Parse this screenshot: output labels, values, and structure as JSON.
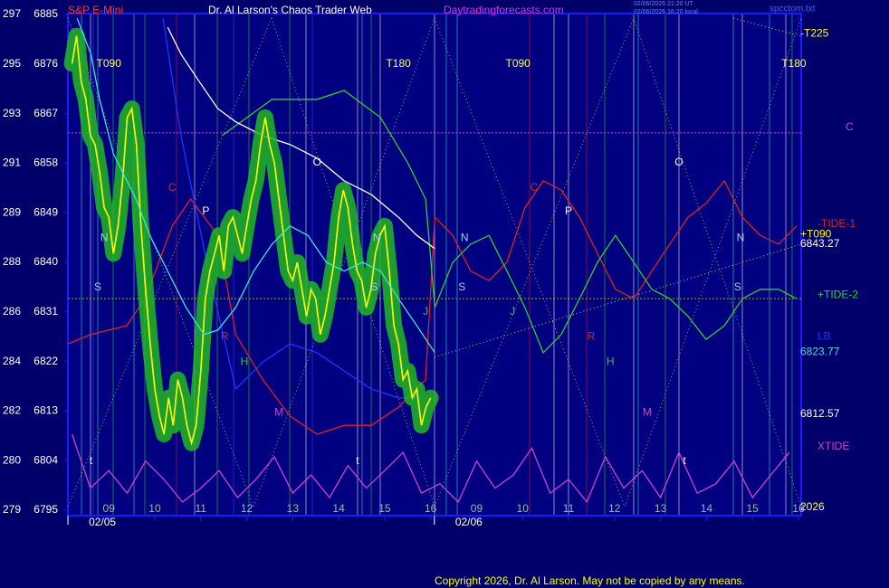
{
  "chart_data": {
    "type": "line",
    "header": {
      "symbol": "S&P E-Mini",
      "title": "Dr. Al Larson's Chaos Trader Web",
      "site": "Daytradingforecasts.com",
      "stamp_1": "02/06/2026 21:20 UT",
      "stamp_2": "02/06/2026 16:20 local",
      "file": "spcctom.txt"
    },
    "copyright": "Copyright 2026, Dr. Al Larson. May not be copied by any means.",
    "ylim": [
      6795,
      6885
    ],
    "yticks": [
      6885,
      6876,
      6867,
      6858,
      6849,
      6840,
      6831,
      6822,
      6813,
      6804,
      6795
    ],
    "left_labels": [
      "297",
      "295",
      "293",
      "291",
      "289",
      "288",
      "286",
      "284",
      "282",
      "280",
      "279"
    ],
    "xlim": [
      0.11,
      16.06
    ],
    "xticks": [
      {
        "value": 1,
        "label": "09"
      },
      {
        "value": 2,
        "label": "10"
      },
      {
        "value": 3,
        "label": "11"
      },
      {
        "value": 4,
        "label": "12"
      },
      {
        "value": 5,
        "label": "13"
      },
      {
        "value": 6,
        "label": "14"
      },
      {
        "value": 7,
        "label": "15"
      },
      {
        "value": 8,
        "label": "16"
      },
      {
        "value": 9,
        "label": "09"
      },
      {
        "value": 10,
        "label": "10"
      },
      {
        "value": 11,
        "label": "11"
      },
      {
        "value": 12,
        "label": "12"
      },
      {
        "value": 13,
        "label": "13"
      },
      {
        "value": 14,
        "label": "14"
      },
      {
        "value": 15,
        "label": "15"
      },
      {
        "value": 16,
        "label": "16"
      }
    ],
    "date_labels": [
      {
        "value": 0.86,
        "label": "02/05"
      },
      {
        "value": 8.83,
        "label": "02/06"
      }
    ],
    "levels": [
      {
        "value": 6863.5,
        "color": "#cc44cc"
      },
      {
        "value": 6833.4,
        "color": "#aaaa00"
      }
    ],
    "series": [
      {
        "name": "LB",
        "color": "#2233ff",
        "x": [
          2.18,
          2.57,
          3.17,
          3.76,
          4.35,
          4.94,
          5.53,
          6.12,
          6.71,
          7.3,
          7.89
        ],
        "values": [
          6884.3,
          6863.0,
          6838.4,
          6817.0,
          6821.9,
          6825.2,
          6823.6,
          6820.3,
          6817.0,
          6815.4,
          6815.4
        ]
      },
      {
        "name": "XTIDE",
        "color": "#cc44cc",
        "x": [
          0.2,
          0.6,
          1.0,
          1.4,
          1.8,
          2.2,
          2.6,
          3.0,
          3.4,
          3.8,
          4.2,
          4.6,
          5.0,
          5.4,
          5.8,
          6.2,
          6.6,
          7.0,
          7.4,
          7.8,
          8.2,
          8.6,
          9.0,
          9.4,
          9.8,
          10.2,
          10.6,
          11.0,
          11.4,
          11.8,
          12.2,
          12.6,
          13.0,
          13.4,
          13.8,
          14.2,
          14.6,
          15.0,
          15.4,
          15.8
        ],
        "values": [
          6808.8,
          6799.0,
          6802.2,
          6798.1,
          6803.9,
          6800.6,
          6796.5,
          6799.0,
          6802.2,
          6797.3,
          6800.6,
          6804.7,
          6798.1,
          6801.4,
          6797.3,
          6803.1,
          6799.0,
          6802.2,
          6805.5,
          6798.1,
          6799.8,
          6796.5,
          6803.9,
          6799.0,
          6801.4,
          6806.3,
          6798.1,
          6800.6,
          6796.5,
          6804.7,
          6799.0,
          6802.2,
          6797.3,
          6805.5,
          6798.1,
          6799.8,
          6803.9,
          6797.3,
          6801.4,
          6805.5
        ]
      },
      {
        "name": "-TIDE-1",
        "color": "#dd2222",
        "x": [
          0.11,
          0.61,
          1.39,
          1.79,
          2.38,
          2.78,
          3.37,
          3.76,
          4.35,
          4.94,
          5.53,
          6.12,
          6.71,
          7.3,
          7.89,
          8.09,
          8.48,
          8.87,
          9.27,
          9.66,
          10.05,
          10.45,
          10.84,
          11.24,
          11.63,
          12.02,
          12.42,
          12.81,
          13.2,
          13.6,
          13.99,
          14.39,
          14.78,
          15.17,
          15.57,
          15.96
        ],
        "values": [
          6825.2,
          6826.9,
          6828.5,
          6833.4,
          6846.6,
          6851.5,
          6844.9,
          6826.9,
          6818.7,
          6812.1,
          6808.8,
          6810.4,
          6810.4,
          6813.7,
          6818.7,
          6848.2,
          6844.9,
          6838.4,
          6836.7,
          6840.0,
          6849.9,
          6854.8,
          6853.1,
          6848.2,
          6841.6,
          6835.1,
          6833.4,
          6838.4,
          6843.3,
          6848.2,
          6850.7,
          6854.8,
          6848.2,
          6844.9,
          6843.3,
          6846.6
        ]
      },
      {
        "name": "+TIDE-2",
        "color": "#33cc33",
        "x": [
          3.46,
          4.55,
          5.53,
          6.12,
          6.91,
          7.5,
          7.89,
          8.09,
          8.48,
          8.87,
          9.27,
          9.66,
          10.05,
          10.45,
          10.84,
          11.24,
          11.63,
          12.02,
          12.42,
          12.81,
          13.2,
          13.6,
          13.99,
          14.39,
          14.78,
          15.17,
          15.57,
          15.96
        ],
        "values": [
          6863.0,
          6869.6,
          6869.6,
          6871.2,
          6866.3,
          6858.1,
          6851.5,
          6831.8,
          6840.0,
          6843.3,
          6844.9,
          6838.4,
          6831.8,
          6823.6,
          6826.9,
          6833.4,
          6840.0,
          6844.9,
          6840.0,
          6835.1,
          6833.4,
          6830.2,
          6826.0,
          6828.5,
          6833.4,
          6835.1,
          6835.1,
          6833.4
        ]
      },
      {
        "color": "#ffffff",
        "x": [
          2.28,
          2.57,
          2.97,
          3.37,
          3.76,
          4.35,
          4.94,
          5.53,
          6.12,
          6.71,
          7.3,
          7.7,
          8.09
        ],
        "values": [
          6882.7,
          6877.8,
          6872.8,
          6867.9,
          6865.5,
          6863.0,
          6861.4,
          6858.9,
          6854.8,
          6852.3,
          6848.2,
          6844.9,
          6842.5
        ]
      },
      {
        "color": "#ffff00",
        "highlight_color": "#22b822",
        "x": [
          0.2,
          0.3,
          0.4,
          0.5,
          0.6,
          0.7,
          0.8,
          0.9,
          1.0,
          1.1,
          1.2,
          1.3,
          1.4,
          1.5,
          1.6,
          1.7,
          1.8,
          1.9,
          2.0,
          2.1,
          2.2,
          2.3,
          2.4,
          2.5,
          2.6,
          2.7,
          2.8,
          2.9,
          3.0,
          3.1,
          3.2,
          3.3,
          3.4,
          3.5,
          3.6,
          3.7,
          3.8,
          3.9,
          4.0,
          4.1,
          4.2,
          4.3,
          4.4,
          4.5,
          4.6,
          4.7,
          4.8,
          4.9,
          5.0,
          5.1,
          5.2,
          5.3,
          5.4,
          5.5,
          5.6,
          5.7,
          5.8,
          5.9,
          6.0,
          6.1,
          6.2,
          6.3,
          6.4,
          6.5,
          6.6,
          6.7,
          6.8,
          6.9,
          7.0,
          7.1,
          7.2,
          7.3,
          7.4,
          7.5,
          7.6,
          7.7,
          7.8,
          7.9,
          8.0
        ],
        "values": [
          6876.1,
          6881.1,
          6872.8,
          6869.6,
          6863.0,
          6861.4,
          6856.4,
          6849.9,
          6848.2,
          6841.6,
          6846.6,
          6854.8,
          6866.3,
          6867.9,
          6861.4,
          6846.6,
          6835.1,
          6825.2,
          6817.0,
          6812.1,
          6808.8,
          6815.4,
          6810.4,
          6818.7,
          6815.4,
          6810.4,
          6807.2,
          6810.4,
          6820.3,
          6833.4,
          6838.4,
          6841.6,
          6844.9,
          6838.4,
          6846.6,
          6848.2,
          6844.9,
          6841.6,
          6846.6,
          6851.5,
          6854.8,
          6861.4,
          6866.3,
          6861.4,
          6858.1,
          6851.5,
          6844.9,
          6838.4,
          6836.7,
          6840.0,
          6835.1,
          6830.2,
          6835.1,
          6833.4,
          6826.9,
          6830.2,
          6835.1,
          6840.0,
          6848.2,
          6853.1,
          6849.9,
          6843.3,
          6838.4,
          6836.7,
          6831.8,
          6835.1,
          6841.6,
          6844.9,
          6846.6,
          6838.4,
          6828.5,
          6825.2,
          6818.7,
          6820.3,
          6815.4,
          6817.0,
          6810.4,
          6813.7,
          6815.4
        ]
      },
      {
        "color": "#40e0e0",
        "x": [
          0.31,
          0.61,
          0.8,
          1.1,
          1.59,
          1.89,
          2.28,
          2.68,
          3.07,
          3.37,
          3.76,
          4.15,
          4.55,
          4.94,
          5.33,
          5.73,
          6.12,
          6.52,
          6.91,
          7.3,
          7.7,
          8.09
        ],
        "values": [
          6884.3,
          6877.8,
          6869.6,
          6859.7,
          6851.5,
          6844.9,
          6838.4,
          6831.8,
          6826.9,
          6827.7,
          6831.8,
          6838.4,
          6843.3,
          6846.6,
          6844.9,
          6840.0,
          6838.4,
          6840.0,
          6838.4,
          6833.4,
          6828.5,
          6823.6
        ]
      }
    ],
    "annotations": [
      {
        "text": "T090",
        "x": 1.0,
        "y": 6876,
        "color": "#ffff66"
      },
      {
        "text": "T180",
        "x": 7.3,
        "y": 6876,
        "color": "#ffff66"
      },
      {
        "text": "T090",
        "x": 9.9,
        "y": 6876,
        "color": "#ffff66"
      },
      {
        "text": "T180",
        "x": 15.9,
        "y": 6876,
        "color": "#ffff66"
      },
      {
        "text": "N",
        "x": 0.9,
        "y": 6844.4,
        "color": "#aaccff"
      },
      {
        "text": "S",
        "x": 0.76,
        "y": 6835.4,
        "color": "#aaccff"
      },
      {
        "text": "C",
        "x": 2.38,
        "y": 6853.5,
        "color": "#dd2222"
      },
      {
        "text": "P",
        "x": 3.11,
        "y": 6849.2,
        "color": "#ffffff"
      },
      {
        "text": "R",
        "x": 3.52,
        "y": 6826.5,
        "color": "#dd2222"
      },
      {
        "text": "H",
        "x": 3.95,
        "y": 6821.9,
        "color": "#33cc33"
      },
      {
        "text": "M",
        "x": 4.7,
        "y": 6812.7,
        "color": "#cc44cc"
      },
      {
        "text": "O",
        "x": 5.53,
        "y": 6858.1,
        "color": "#ffffff"
      },
      {
        "text": "N",
        "x": 6.83,
        "y": 6844.4,
        "color": "#aaccff"
      },
      {
        "text": "S",
        "x": 6.77,
        "y": 6835.4,
        "color": "#aaccff"
      },
      {
        "text": "J",
        "x": 7.89,
        "y": 6831.0,
        "color": "#33cc33"
      },
      {
        "text": "t",
        "x": 0.61,
        "y": 6803.9,
        "color": "#ffffff"
      },
      {
        "text": "t",
        "x": 6.41,
        "y": 6803.9,
        "color": "#ffffff"
      },
      {
        "text": "N",
        "x": 8.74,
        "y": 6844.4,
        "color": "#aaccff"
      },
      {
        "text": "S",
        "x": 8.68,
        "y": 6835.4,
        "color": "#aaccff"
      },
      {
        "text": "J",
        "x": 9.78,
        "y": 6831.0,
        "color": "#33cc33"
      },
      {
        "text": "C",
        "x": 10.25,
        "y": 6853.5,
        "color": "#dd2222"
      },
      {
        "text": "P",
        "x": 11.0,
        "y": 6849.2,
        "color": "#ffffff"
      },
      {
        "text": "R",
        "x": 11.49,
        "y": 6826.5,
        "color": "#dd2222"
      },
      {
        "text": "H",
        "x": 11.91,
        "y": 6821.9,
        "color": "#33cc33"
      },
      {
        "text": "M",
        "x": 12.71,
        "y": 6812.7,
        "color": "#cc44cc"
      },
      {
        "text": "O",
        "x": 13.4,
        "y": 6858.1,
        "color": "#ffffff"
      },
      {
        "text": "N",
        "x": 14.74,
        "y": 6844.4,
        "color": "#aaccff"
      },
      {
        "text": "S",
        "x": 14.68,
        "y": 6835.4,
        "color": "#aaccff"
      },
      {
        "text": "t",
        "x": 13.52,
        "y": 6803.9,
        "color": "#ffffff"
      }
    ],
    "right_labels": [
      {
        "text": "-T225",
        "y": 6881.5,
        "color": "#ffff00"
      },
      {
        "text": "C",
        "y": 6864.5,
        "color": "#cc44cc"
      },
      {
        "text": "+T090",
        "y": 6845.0,
        "color": "#ffff00"
      },
      {
        "text": "6843.27",
        "y": 6843.3,
        "color": "#ffffff"
      },
      {
        "text": "6823.77",
        "y": 6823.7,
        "color": "#40e0e0"
      },
      {
        "text": "6812.57",
        "y": 6812.4,
        "color": "#ffffff"
      },
      {
        "text": "2026",
        "y": 6795.5,
        "color": "#ffff66"
      }
    ],
    "series_label_y": [
      6826.5,
      6806.5,
      6846.9,
      6834.0,
      null,
      null,
      null
    ]
  }
}
